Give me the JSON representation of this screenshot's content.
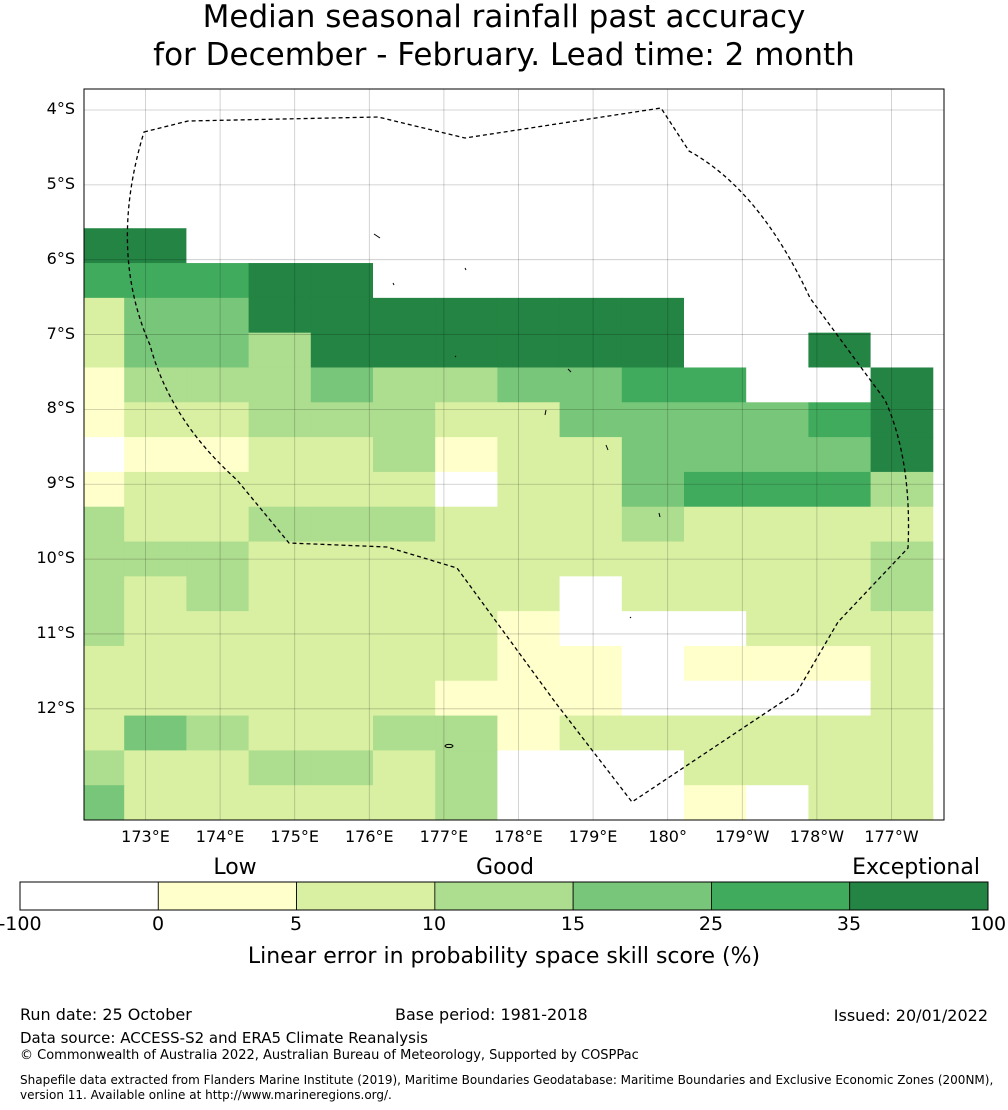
{
  "title": {
    "line1": "Median seasonal rainfall past accuracy",
    "line2": "for December - February. Lead time: 2 month"
  },
  "map": {
    "lat_labels": [
      "4°S",
      "5°S",
      "6°S",
      "7°S",
      "8°S",
      "9°S",
      "10°S",
      "11°S",
      "12°S"
    ],
    "lon_labels": [
      "173°E",
      "174°E",
      "175°E",
      "176°E",
      "177°E",
      "178°E",
      "179°E",
      "180°",
      "179°W",
      "178°W",
      "177°W"
    ],
    "grid_rows": [
      "77777777777777",
      "77777777777777",
      "77777777777777",
      "77777777777777",
      "66777777777777",
      "55566777777777",
      "24466666667777",
      "24436666667767",
      "13334334455776",
      "12233322444456",
      "01122312244446",
      "12222202245553",
      "32233322232222",
      "33322222222223",
      "32322222022223",
      "32222221000222",
      "22222221101112",
      "22222211100002",
      "24322331222222",
      "32233230002222",
      "42222230001022"
    ],
    "eez_boundary": "Tuvalu EEZ"
  },
  "legend": {
    "categories": [
      "Low",
      "Good",
      "Exceptional"
    ],
    "ticks": [
      "-100",
      "0",
      "5",
      "10",
      "15",
      "25",
      "35",
      "100"
    ],
    "colors": [
      "#ffffff",
      "#ffffcc",
      "#d9f0a3",
      "#addd8e",
      "#78c679",
      "#41ab5d",
      "#238443"
    ],
    "axis_label": "Linear error in probability space skill score (%)"
  },
  "footer": {
    "run_date": "Run date: 25 October",
    "base_period": "Base period: 1981-2018",
    "issued": "Issued: 20/01/2022",
    "data_source": "Data source: ACCESS-S2 and ERA5 Climate Reanalysis",
    "copyright": "© Commonwealth of Australia 2022, Australian Bureau of Meteorology, Supported by COSPPac",
    "shapefile_line1": "Shapefile data extracted from Flanders Marine Institute (2019), Maritime Boundaries Geodatabase: Maritime Boundaries and Exclusive Economic Zones (200NM),",
    "shapefile_line2": "version 11. Available online at http://www.marineregions.org/."
  }
}
